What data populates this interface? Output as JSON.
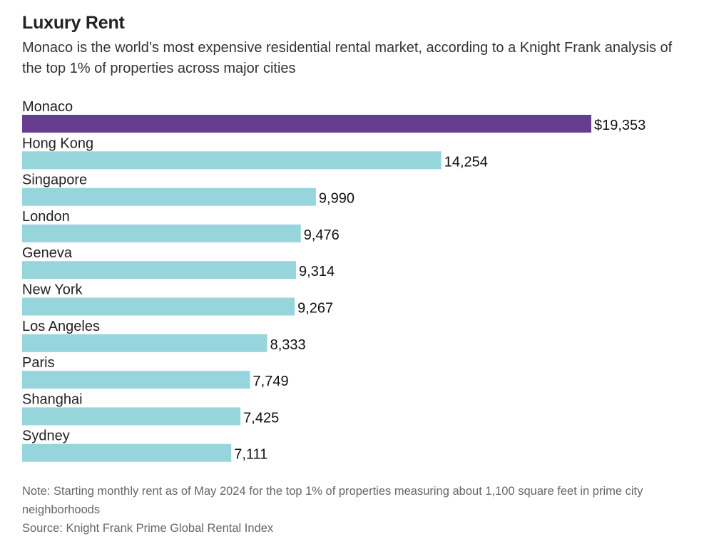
{
  "header": {
    "title": "Luxury Rent",
    "subtitle": "Monaco is the world’s most expensive residential rental market, according to a Knight Frank analysis of the top 1% of properties across major cities"
  },
  "chart_data": {
    "type": "bar",
    "orientation": "horizontal",
    "categories": [
      "Monaco",
      "Hong Kong",
      "Singapore",
      "London",
      "Geneva",
      "New York",
      "Los Angeles",
      "Paris",
      "Shanghai",
      "Sydney"
    ],
    "values": [
      19353,
      14254,
      9990,
      9476,
      9314,
      9267,
      8333,
      7749,
      7425,
      7111
    ],
    "value_labels": [
      "$19,353",
      "14,254",
      "9,990",
      "9,476",
      "9,314",
      "9,267",
      "8,333",
      "7,749",
      "7,425",
      "7,111"
    ],
    "highlight_index": 0,
    "colors": {
      "highlight": "#663d8f",
      "default": "#97d5dc"
    },
    "xlim": [
      0,
      19353
    ],
    "grid": false,
    "legend": "none"
  },
  "footer": {
    "note": "Note: Starting monthly rent as of May 2024 for the top 1% of properties measuring about 1,100 square feet in prime city neighborhoods",
    "source": "Source: Knight Frank Prime Global Rental Index"
  }
}
